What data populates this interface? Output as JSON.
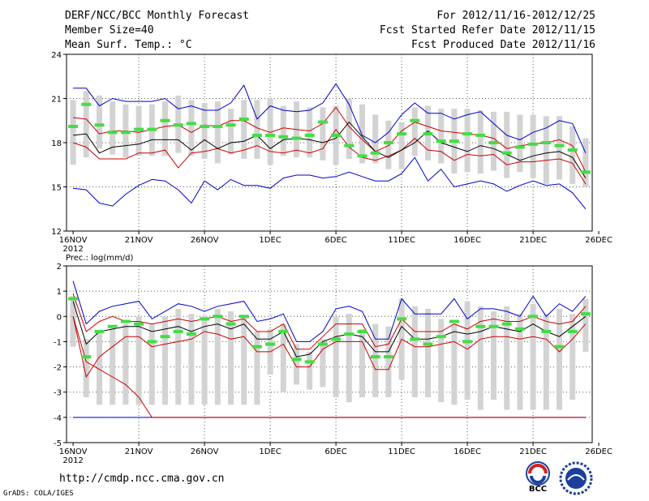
{
  "header": {
    "title": "DERF/NCC/BCC Monthly Forecast",
    "member_size": "Member Size=40",
    "variable": "Mean Surf. Temp.: °C",
    "period": "For 2012/11/16-2012/12/25",
    "started": "Fcst Started Refer Date 2012/11/15",
    "produced": "Fcst Produced Date 2012/11/16"
  },
  "footer": {
    "url": "http://cmdp.ncc.cma.gov.cn",
    "credit": "GrADS: COLA/IGES",
    "logo1_text": "BCC"
  },
  "colors": {
    "bar": "#d3d3d3",
    "median": "#44dd44",
    "mean": "#000000",
    "spread": "#cc0000",
    "extreme": "#0000cc",
    "grid": "#555555"
  },
  "chart_data": [
    {
      "type": "ensemble-box",
      "title": "Mean Surf. Temp.: °C",
      "x": "day index 0..39 from 2012-11-16",
      "x_tick_labels": [
        "16NOV",
        "21NOV",
        "26NOV",
        "1DEC",
        "6DEC",
        "11DEC",
        "16DEC",
        "21DEC",
        "26DEC"
      ],
      "x_year_label": "2012",
      "ylim": [
        12,
        24
      ],
      "y_ticks": [
        12,
        15,
        18,
        21,
        24
      ],
      "box_low": [
        16.5,
        17.0,
        17.6,
        17.2,
        17.0,
        17.1,
        17.1,
        17.1,
        17.3,
        17.1,
        16.9,
        16.6,
        17.2,
        16.9,
        16.9,
        16.5,
        17.1,
        17.0,
        17.0,
        16.8,
        16.5,
        16.9,
        16.6,
        16.6,
        16.2,
        16.2,
        17.1,
        16.8,
        16.6,
        15.9,
        16.0,
        15.9,
        16.1,
        15.6,
        16.0,
        15.6,
        15.2,
        15.5,
        15.2,
        15.0
      ],
      "box_high": [
        20.9,
        21.5,
        21.2,
        20.8,
        20.6,
        20.5,
        20.6,
        20.8,
        21.2,
        20.9,
        20.7,
        20.8,
        20.3,
        20.9,
        20.9,
        21.0,
        20.5,
        20.8,
        20.4,
        20.4,
        20.5,
        21.0,
        20.6,
        19.9,
        19.5,
        19.4,
        20.4,
        20.5,
        20.3,
        20.3,
        20.3,
        20.2,
        20.1,
        20.1,
        19.9,
        19.9,
        19.8,
        19.8,
        19.1,
        18.3
      ],
      "median": [
        19.1,
        20.6,
        19.2,
        18.7,
        18.7,
        18.9,
        18.9,
        19.5,
        19.2,
        19.3,
        19.1,
        19.1,
        19.2,
        19.6,
        18.5,
        18.5,
        18.4,
        18.3,
        18.5,
        19.4,
        18.5,
        17.8,
        17.1,
        17.3,
        18.0,
        18.6,
        19.5,
        18.6,
        18.1,
        18.1,
        18.6,
        18.5,
        18.0,
        17.3,
        17.7,
        17.9,
        18.0,
        17.8,
        17.5,
        16.0
      ],
      "mean": [
        18.5,
        18.6,
        17.3,
        17.7,
        17.8,
        17.9,
        18.2,
        18.2,
        18.2,
        17.5,
        18.2,
        17.6,
        18.0,
        18.1,
        18.5,
        17.6,
        18.2,
        18.3,
        18.2,
        18.0,
        18.3,
        19.4,
        18.4,
        17.4,
        17.0,
        17.5,
        18.0,
        18.8,
        18.0,
        17.7,
        17.4,
        17.8,
        17.6,
        17.2,
        16.8,
        17.1,
        17.3,
        17.4,
        17.0,
        15.6
      ],
      "upper": [
        19.7,
        19.6,
        18.6,
        18.8,
        18.8,
        18.7,
        18.9,
        19.1,
        19.2,
        18.7,
        19.2,
        19.1,
        19.5,
        19.5,
        19.0,
        18.7,
        19.0,
        18.9,
        18.8,
        19.3,
        20.4,
        19.1,
        18.2,
        17.4,
        17.8,
        18.8,
        19.4,
        19.1,
        18.8,
        18.7,
        18.6,
        18.5,
        18.3,
        17.6,
        17.8,
        17.9,
        18.0,
        18.2,
        17.8,
        16.0
      ],
      "lower": [
        18.0,
        17.7,
        16.9,
        16.9,
        16.9,
        17.3,
        17.3,
        17.5,
        16.3,
        17.3,
        17.4,
        17.6,
        17.3,
        17.5,
        17.8,
        17.4,
        17.3,
        17.5,
        17.3,
        17.6,
        18.9,
        17.7,
        17.0,
        16.8,
        17.1,
        17.5,
        18.3,
        17.5,
        17.4,
        16.8,
        17.2,
        17.1,
        17.2,
        16.5,
        16.7,
        16.7,
        16.8,
        16.9,
        16.6,
        15.2
      ],
      "max": [
        21.7,
        21.7,
        20.5,
        21.0,
        20.8,
        20.8,
        20.8,
        21.0,
        20.3,
        20.5,
        20.2,
        20.2,
        20.7,
        21.9,
        19.6,
        20.5,
        20.2,
        20.1,
        20.2,
        20.7,
        22.0,
        20.6,
        18.5,
        18.0,
        18.7,
        19.9,
        20.7,
        20.0,
        20.0,
        19.6,
        19.9,
        20.1,
        19.3,
        18.5,
        18.2,
        18.7,
        19.0,
        19.5,
        19.3,
        17.3
      ],
      "min": [
        14.9,
        14.8,
        13.9,
        13.7,
        14.5,
        15.1,
        15.5,
        15.4,
        14.8,
        13.9,
        15.4,
        14.8,
        15.5,
        15.1,
        15.1,
        14.9,
        15.6,
        15.8,
        15.8,
        15.6,
        15.7,
        16.0,
        15.7,
        15.4,
        15.4,
        15.9,
        17.0,
        15.4,
        16.2,
        15.0,
        15.2,
        15.4,
        15.2,
        14.7,
        15.1,
        15.4,
        15.1,
        15.2,
        14.6,
        13.5
      ]
    },
    {
      "type": "ensemble-box",
      "title": "Prec.: log(mm/d)",
      "x": "day index 0..39 from 2012-11-16",
      "x_tick_labels": [
        "16NOV",
        "21NOV",
        "26NOV",
        "1DEC",
        "6DEC",
        "11DEC",
        "16DEC",
        "21DEC",
        "26DEC"
      ],
      "x_year_label": "2012",
      "ylim": [
        -5,
        2
      ],
      "y_ticks": [
        -5,
        -4,
        -3,
        -2,
        -1,
        0,
        1,
        2
      ],
      "box_low": [
        -1.2,
        -3.2,
        -3.5,
        -3.5,
        -3.5,
        -3.5,
        -3.5,
        -3.5,
        -3.5,
        -3.5,
        -3.5,
        -3.5,
        -3.5,
        -3.5,
        -3.5,
        -2.3,
        -3.0,
        -2.7,
        -2.9,
        -2.8,
        -3.2,
        -3.4,
        -3.2,
        -3.2,
        -3.2,
        -2.5,
        -3.2,
        -3.2,
        -3.4,
        -3.5,
        -3.3,
        -3.7,
        -3.3,
        -3.7,
        -3.7,
        -3.7,
        -3.7,
        -3.7,
        -3.3,
        -1.4
      ],
      "box_high": [
        0.8,
        -0.9,
        -0.6,
        -0.5,
        -0.3,
        0.0,
        -0.3,
        0.0,
        0.3,
        0.1,
        0.0,
        0.3,
        0.2,
        0.0,
        -0.6,
        -0.5,
        -0.3,
        -1.1,
        -1.4,
        -0.9,
        0.0,
        0.1,
        -0.5,
        -0.3,
        -0.4,
        0.7,
        0.4,
        0.3,
        -0.1,
        -0.3,
        0.6,
        0.4,
        0.2,
        0.4,
        0.1,
        0.5,
        0.1,
        0.3,
        0.1,
        0.7
      ],
      "median": [
        0.7,
        -1.6,
        -0.6,
        -0.4,
        -0.2,
        -0.3,
        -1.0,
        -0.8,
        -0.6,
        -0.7,
        -0.1,
        0.0,
        -0.3,
        0.0,
        -1.2,
        -1.1,
        -0.6,
        -1.7,
        -1.8,
        -1.1,
        -0.9,
        -0.7,
        -0.6,
        -1.6,
        -1.6,
        -0.1,
        -0.9,
        -1.1,
        -0.8,
        -0.2,
        -1.0,
        -0.4,
        -0.4,
        -0.3,
        -0.5,
        0.0,
        -0.6,
        -1.2,
        -0.6,
        0.1
      ],
      "mean": [
        0.6,
        -1.1,
        -0.6,
        -0.5,
        -0.4,
        -0.4,
        -0.6,
        -0.5,
        -0.4,
        -0.6,
        -0.4,
        -0.3,
        -0.5,
        -0.3,
        -0.9,
        -0.9,
        -0.6,
        -1.6,
        -1.5,
        -1.0,
        -0.8,
        -0.7,
        -0.8,
        -1.4,
        -1.4,
        -0.4,
        -0.9,
        -0.9,
        -0.8,
        -0.6,
        -0.7,
        -0.6,
        -0.4,
        -0.5,
        -0.6,
        -0.3,
        -0.6,
        -0.8,
        -0.4,
        0.0
      ],
      "upper": [
        0.9,
        -0.6,
        -0.2,
        0.0,
        -0.2,
        -0.2,
        -0.3,
        -0.2,
        -0.1,
        -0.2,
        -0.1,
        -0.0,
        -0.2,
        -0.1,
        -0.6,
        -0.6,
        -0.3,
        -1.3,
        -1.3,
        -0.8,
        -0.3,
        -0.3,
        -0.3,
        -1.2,
        -1.1,
        -0.1,
        -0.6,
        -0.6,
        -0.6,
        -0.3,
        -0.5,
        -0.2,
        -0.1,
        -0.2,
        -0.2,
        0.0,
        -0.2,
        -0.3,
        -0.2,
        0.4
      ],
      "lower": [
        0.0,
        -2.4,
        -1.6,
        -1.2,
        -0.8,
        -0.8,
        -1.2,
        -1.1,
        -1.0,
        -0.9,
        -0.6,
        -0.7,
        -0.9,
        -0.8,
        -1.4,
        -1.4,
        -1.1,
        -2.0,
        -2.0,
        -1.3,
        -1.0,
        -1.0,
        -1.0,
        -2.1,
        -2.1,
        -0.9,
        -1.2,
        -1.2,
        -1.1,
        -1.0,
        -1.3,
        -0.9,
        -0.8,
        -0.8,
        -0.9,
        -0.8,
        -0.9,
        -1.4,
        -0.9,
        -0.3
      ],
      "max": [
        1.4,
        -0.3,
        0.2,
        0.4,
        0.5,
        0.6,
        -0.1,
        0.2,
        0.5,
        0.4,
        0.2,
        0.4,
        0.5,
        0.6,
        -0.2,
        -0.1,
        0.1,
        -1.0,
        -1.0,
        -0.6,
        0.3,
        0.4,
        0.2,
        -0.9,
        -0.9,
        0.7,
        0.1,
        0.1,
        0.1,
        0.7,
        -0.1,
        0.3,
        0.3,
        0.2,
        0.0,
        0.8,
        0.0,
        0.5,
        0.2,
        0.8
      ],
      "min": [
        -4.0,
        -4.0,
        -4.0,
        -4.0,
        -4.0,
        -4.0,
        -4.0,
        -4.0,
        -4.0,
        -4.0,
        -4.0,
        -4.0,
        -4.0,
        -4.0,
        -4.0,
        -4.0,
        -4.0,
        -4.0,
        -4.0,
        -4.0,
        -4.0,
        -4.0,
        -4.0,
        -4.0,
        -4.0,
        -4.0,
        -4.0,
        -4.0,
        -4.0,
        -4.0,
        -4.0,
        -4.0,
        -4.0,
        -4.0,
        -4.0,
        -4.0,
        -4.0,
        -4.0,
        -4.0,
        -4.0
      ],
      "low_curve": [
        0.0,
        -1.8,
        -2.1,
        -2.4,
        -2.7,
        -3.2,
        -4.0,
        -4.0,
        -4.0,
        -4.0,
        -4.0,
        -4.0,
        -4.0,
        -4.0,
        -4.0,
        -4.0,
        -4.0,
        -4.0,
        -4.0,
        -4.0,
        -4.0,
        -4.0,
        -4.0,
        -4.0,
        -4.0,
        -4.0,
        -4.0,
        -4.0,
        -4.0,
        -4.0,
        -4.0,
        -4.0,
        -4.0,
        -4.0,
        -4.0,
        -4.0,
        -4.0,
        -4.0,
        -4.0,
        -4.0
      ]
    }
  ]
}
